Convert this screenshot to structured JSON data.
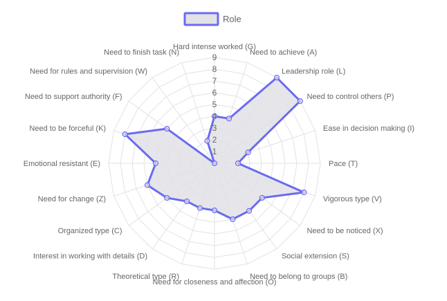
{
  "chart_data": {
    "type": "radar",
    "title": "",
    "legend_position": "top",
    "r_range": [
      0,
      9
    ],
    "r_ticks": [
      1,
      2,
      3,
      4,
      5,
      6,
      7,
      8,
      9
    ],
    "grid": true,
    "categories": [
      "Hard intense worked (G)",
      "Need to achieve (A)",
      "Leadership role (L)",
      "Need to control others (P)",
      "Ease in decision making (I)",
      "Pace (T)",
      "Vigorous type (V)",
      "Need to be noticed (X)",
      "Social extension (S)",
      "Need to belong to groups (B)",
      "Need for closeness and affection (O)",
      "Theoretical type (R)",
      "Interest in working with details (D)",
      "Organized type (C)",
      "Need for change (Z)",
      "Emotional resistant (E)",
      "Need to be forceful (K)",
      "Need to support authority (F)",
      "Need for rules and supervision (W)",
      "Need to finish task (N)"
    ],
    "series": [
      {
        "name": "Role",
        "values": [
          4,
          4,
          9,
          9,
          3,
          2,
          8,
          5,
          5,
          5,
          4,
          4,
          4,
          5,
          6,
          5,
          8,
          5,
          0,
          2
        ],
        "border_color": "#6b6bf0",
        "fill_color": "#e2e2e6"
      }
    ]
  }
}
